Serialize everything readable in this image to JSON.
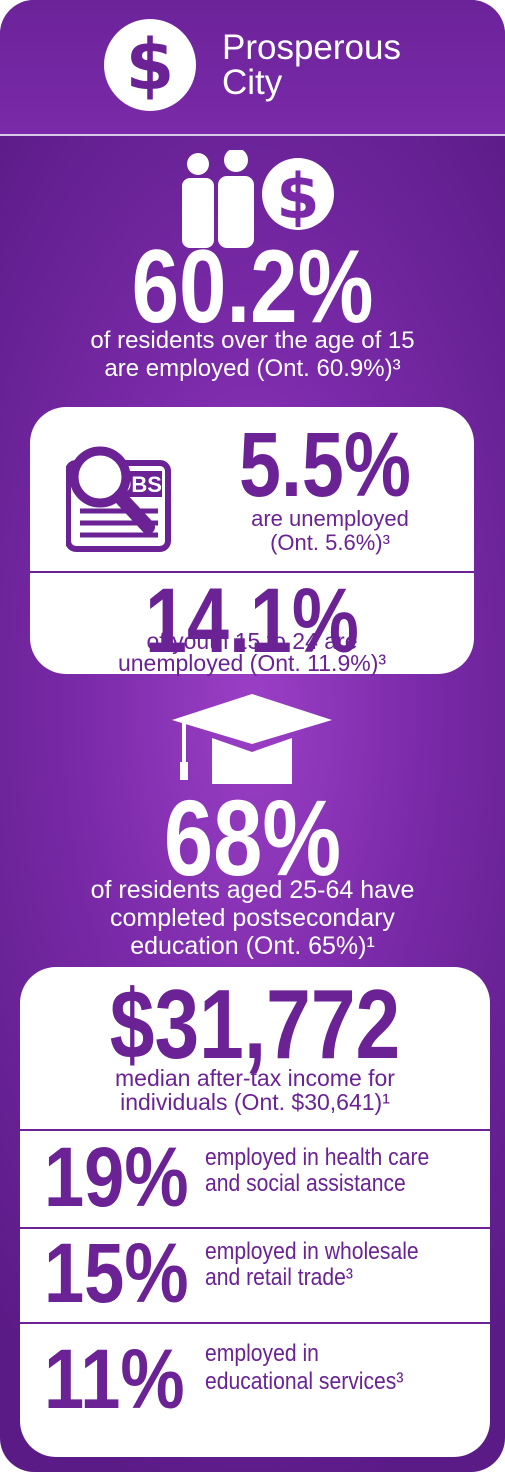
{
  "header": {
    "icon": "dollar-circle-icon",
    "glyph": "$",
    "title_line1": "Prosperous",
    "title_line2": "City"
  },
  "employment": {
    "icon": "people-dollar-icon",
    "value": "60.2%",
    "line1": "of residents over the age of 15",
    "line2": "are employed (Ont. 60.9%)³"
  },
  "unemployment": {
    "icon": "jobs-search-icon",
    "jobs_label": "JOBS",
    "value": "5.5%",
    "line1": "are unemployed",
    "line2": "(Ont. 5.6%)³"
  },
  "youth": {
    "value": "14.1%",
    "line1": "of youth 15 to 24 are",
    "line2": "unemployed (Ont. 11.9%)³"
  },
  "education": {
    "icon": "graduation-cap-icon",
    "value": "68%",
    "line1": "of residents aged 25-64 have",
    "line2": "completed postsecondary",
    "line3": "education (Ont. 65%)¹"
  },
  "income": {
    "value": "$31,772",
    "line1": "median after-tax income for",
    "line2": "individuals (Ont. $30,641)¹"
  },
  "sectors": [
    {
      "value": "19%",
      "line1": "employed in health care",
      "line2": "and social assistance"
    },
    {
      "value": "15%",
      "line1": "employed in wholesale",
      "line2": "and retail trade³"
    },
    {
      "value": "11%",
      "line1": "employed in",
      "line2": "educational services³"
    }
  ],
  "colors": {
    "purple": "#6a2294",
    "background": "#7a2aa8",
    "white": "#ffffff"
  }
}
